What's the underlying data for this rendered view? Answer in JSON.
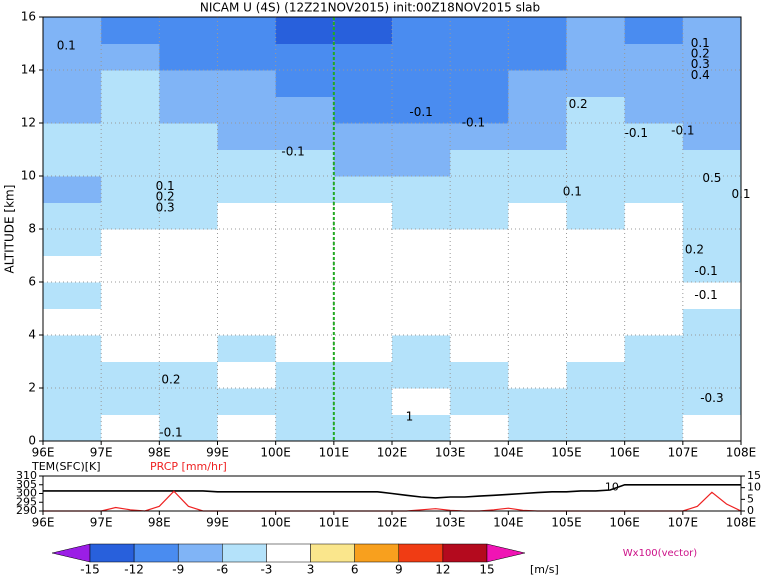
{
  "chart_data": [
    {
      "type": "heatmap",
      "title": "NICAM U (4S) (12Z21NOV2015) init:00Z18NOV2015 slab",
      "ylabel": "ALTITUDE [km]",
      "x": [
        96.5,
        97.5,
        98.5,
        99.5,
        100.5,
        101.5,
        102.5,
        103.5,
        104.5,
        105.5,
        106.5,
        107.5
      ],
      "y": [
        0.5,
        1.5,
        2.5,
        3.5,
        4.5,
        5.5,
        6.5,
        7.5,
        8.5,
        9.5,
        10.5,
        11.5,
        12.5,
        13.5,
        14.5,
        15.5
      ],
      "z": [
        [
          -4,
          0,
          -4,
          0,
          -4,
          -4,
          -4,
          0,
          -4,
          -4,
          -4,
          0
        ],
        [
          -4,
          -4,
          -4,
          -4,
          -4,
          -4,
          0,
          -4,
          -4,
          -4,
          -4,
          -4
        ],
        [
          -4,
          -4,
          -4,
          0,
          -4,
          -4,
          -4,
          -4,
          0,
          -4,
          -4,
          -4
        ],
        [
          -4,
          0,
          0,
          -4,
          0,
          0,
          -4,
          0,
          0,
          0,
          -4,
          -4
        ],
        [
          0,
          0,
          0,
          0,
          0,
          0,
          0,
          0,
          0,
          0,
          0,
          -4
        ],
        [
          -4,
          0,
          0,
          0,
          0,
          0,
          0,
          0,
          0,
          0,
          0,
          0
        ],
        [
          0,
          0,
          0,
          0,
          0,
          0,
          0,
          0,
          0,
          0,
          0,
          -4
        ],
        [
          -4,
          0,
          0,
          0,
          0,
          0,
          0,
          0,
          0,
          0,
          0,
          -4
        ],
        [
          -4,
          -4,
          -4,
          0,
          0,
          0,
          -4,
          -4,
          0,
          -4,
          0,
          -4
        ],
        [
          -7,
          -4,
          -4,
          -4,
          -4,
          -4,
          -4,
          -4,
          -4,
          -4,
          -4,
          -4
        ],
        [
          -4,
          -4,
          -4,
          -4,
          -4,
          -7,
          -7,
          -4,
          -4,
          -4,
          -4,
          -4
        ],
        [
          -4,
          -4,
          -4,
          -7,
          -7,
          -7,
          -7,
          -7,
          -7,
          -4,
          -4,
          -7
        ],
        [
          -7,
          -4,
          -7,
          -7,
          -7,
          -10,
          -10,
          -10,
          -7,
          -4,
          -7,
          -7
        ],
        [
          -7,
          -4,
          -7,
          -7,
          -10,
          -10,
          -10,
          -10,
          -7,
          -7,
          -7,
          -7
        ],
        [
          -7,
          -7,
          -10,
          -10,
          -10,
          -10,
          -10,
          -10,
          -10,
          -7,
          -7,
          -7
        ],
        [
          -7,
          -10,
          -10,
          -10,
          -13,
          -13,
          -10,
          -10,
          -10,
          -7,
          -10,
          -7
        ]
      ],
      "xlim": [
        96,
        108
      ],
      "ylim": [
        0,
        16
      ],
      "xticks": [
        {
          "value": 96,
          "label": "96E"
        },
        {
          "value": 97,
          "label": "97E"
        },
        {
          "value": 98,
          "label": "98E"
        },
        {
          "value": 99,
          "label": "99E"
        },
        {
          "value": 100,
          "label": "100E"
        },
        {
          "value": 101,
          "label": "101E"
        },
        {
          "value": 102,
          "label": "102E"
        },
        {
          "value": 103,
          "label": "103E"
        },
        {
          "value": 104,
          "label": "104E"
        },
        {
          "value": 105,
          "label": "105E"
        },
        {
          "value": 106,
          "label": "106E"
        },
        {
          "value": 107,
          "label": "107E"
        },
        {
          "value": 108,
          "label": "108E"
        }
      ],
      "yticks": [
        0,
        2,
        4,
        6,
        8,
        10,
        12,
        14,
        16
      ],
      "grid": true,
      "marker_x": 101,
      "marker_color": "#22aa22",
      "annotations": [
        {
          "text": "0.1",
          "x": 96.4,
          "y": 14.9
        },
        {
          "text": "-0.1",
          "x": 100.3,
          "y": 10.9
        },
        {
          "text": "-0.1",
          "x": 102.5,
          "y": 12.4
        },
        {
          "text": "-0.1",
          "x": 103.4,
          "y": 12.0
        },
        {
          "text": "0.2",
          "x": 105.2,
          "y": 12.7
        },
        {
          "text": "-0.1",
          "x": 106.2,
          "y": 11.6
        },
        {
          "text": "-0.1",
          "x": 107.0,
          "y": 11.7
        },
        {
          "text": "0.1",
          "x": 107.3,
          "y": 15.0
        },
        {
          "text": "0.2",
          "x": 107.3,
          "y": 14.6
        },
        {
          "text": "0.3",
          "x": 107.3,
          "y": 14.2
        },
        {
          "text": "0.4",
          "x": 107.3,
          "y": 13.8
        },
        {
          "text": "0.1",
          "x": 105.1,
          "y": 9.4
        },
        {
          "text": "0.5",
          "x": 107.5,
          "y": 9.9
        },
        {
          "text": "0.1",
          "x": 108.0,
          "y": 9.3
        },
        {
          "text": "0.1",
          "x": 98.1,
          "y": 9.6
        },
        {
          "text": "0.2",
          "x": 98.1,
          "y": 9.2
        },
        {
          "text": "0.3",
          "x": 98.1,
          "y": 8.8
        },
        {
          "text": "0.2",
          "x": 98.2,
          "y": 2.3
        },
        {
          "text": "-0.1",
          "x": 98.2,
          "y": 0.3
        },
        {
          "text": "0.2",
          "x": 107.2,
          "y": 7.2
        },
        {
          "text": "-0.1",
          "x": 107.4,
          "y": 6.4
        },
        {
          "text": "-0.1",
          "x": 107.4,
          "y": 5.5
        },
        {
          "text": "-0.3",
          "x": 107.5,
          "y": 1.6
        },
        {
          "text": "1",
          "x": 102.3,
          "y": 0.9
        }
      ]
    },
    {
      "type": "line",
      "labels": [
        "TEM(SFC)[K]",
        "PRCP [mm/hr]"
      ],
      "x": [
        96,
        96.25,
        96.5,
        96.75,
        97,
        97.25,
        97.5,
        97.75,
        98,
        98.25,
        98.5,
        98.75,
        99,
        99.25,
        99.5,
        99.75,
        100,
        100.25,
        100.5,
        100.75,
        101,
        101.25,
        101.5,
        101.75,
        102,
        102.25,
        102.5,
        102.75,
        103,
        103.25,
        103.5,
        103.75,
        104,
        104.25,
        104.5,
        104.75,
        105,
        105.25,
        105.5,
        105.75,
        106,
        106.25,
        106.5,
        106.75,
        107,
        107.25,
        107.5,
        107.75,
        108
      ],
      "series": [
        {
          "name": "TEM",
          "color": "#000000",
          "values": [
            301.5,
            301.5,
            301.5,
            301.5,
            301.5,
            301.5,
            301.5,
            301.5,
            301.5,
            301.5,
            301.5,
            301.5,
            301,
            301,
            301,
            301,
            301,
            301,
            301,
            301,
            301,
            301,
            301,
            301,
            300,
            299,
            298,
            297.5,
            298,
            298,
            298.5,
            299,
            299.5,
            300,
            300.5,
            301,
            301,
            301.5,
            301.5,
            302,
            305,
            305,
            305,
            305,
            305,
            305,
            305,
            305,
            305
          ]
        },
        {
          "name": "PRCP",
          "color": "#ee2222",
          "axis": "y2",
          "values": [
            0,
            0,
            0,
            0,
            0,
            1.5,
            0.5,
            0,
            2,
            8.5,
            2,
            0,
            0,
            0,
            0,
            0,
            0,
            0,
            0,
            0,
            0,
            0,
            0,
            0,
            0,
            0,
            0.5,
            1,
            0.3,
            0,
            0,
            0.5,
            1.2,
            0.3,
            0,
            0,
            0,
            0,
            0,
            0,
            0,
            0,
            0,
            0,
            0,
            2,
            8,
            3,
            0
          ]
        }
      ],
      "xlim": [
        96,
        108
      ],
      "ylim": [
        290,
        310
      ],
      "y2lim": [
        0,
        15
      ],
      "xticks": [
        {
          "value": 96,
          "label": "96E"
        },
        {
          "value": 97,
          "label": "97E"
        },
        {
          "value": 98,
          "label": "98E"
        },
        {
          "value": 99,
          "label": "99E"
        },
        {
          "value": 100,
          "label": "100E"
        },
        {
          "value": 101,
          "label": "101E"
        },
        {
          "value": 102,
          "label": "102E"
        },
        {
          "value": 103,
          "label": "103E"
        },
        {
          "value": 104,
          "label": "104E"
        },
        {
          "value": 105,
          "label": "105E"
        },
        {
          "value": 106,
          "label": "106E"
        },
        {
          "value": 107,
          "label": "107E"
        },
        {
          "value": 108,
          "label": "108E"
        }
      ],
      "yticks": [
        290,
        295,
        300,
        305,
        310
      ],
      "y2ticks": [
        0,
        5,
        10,
        15
      ],
      "annotations": [
        {
          "text": "10",
          "x": 105.9,
          "y": 303.5
        }
      ]
    },
    {
      "type": "colorbar",
      "levels": [
        -15,
        -12,
        -9,
        -6,
        -3,
        3,
        6,
        9,
        12,
        15
      ],
      "colors": [
        "#9b1ee6",
        "#2860dc",
        "#4a8cf0",
        "#80b4f6",
        "#b4e2fa",
        "#ffffff",
        "#fae68c",
        "#f8a01e",
        "#f03c14",
        "#b40a1e",
        "#f014b4"
      ],
      "unit": "[m/s]",
      "vector_label": "Wx100(vector)"
    }
  ]
}
